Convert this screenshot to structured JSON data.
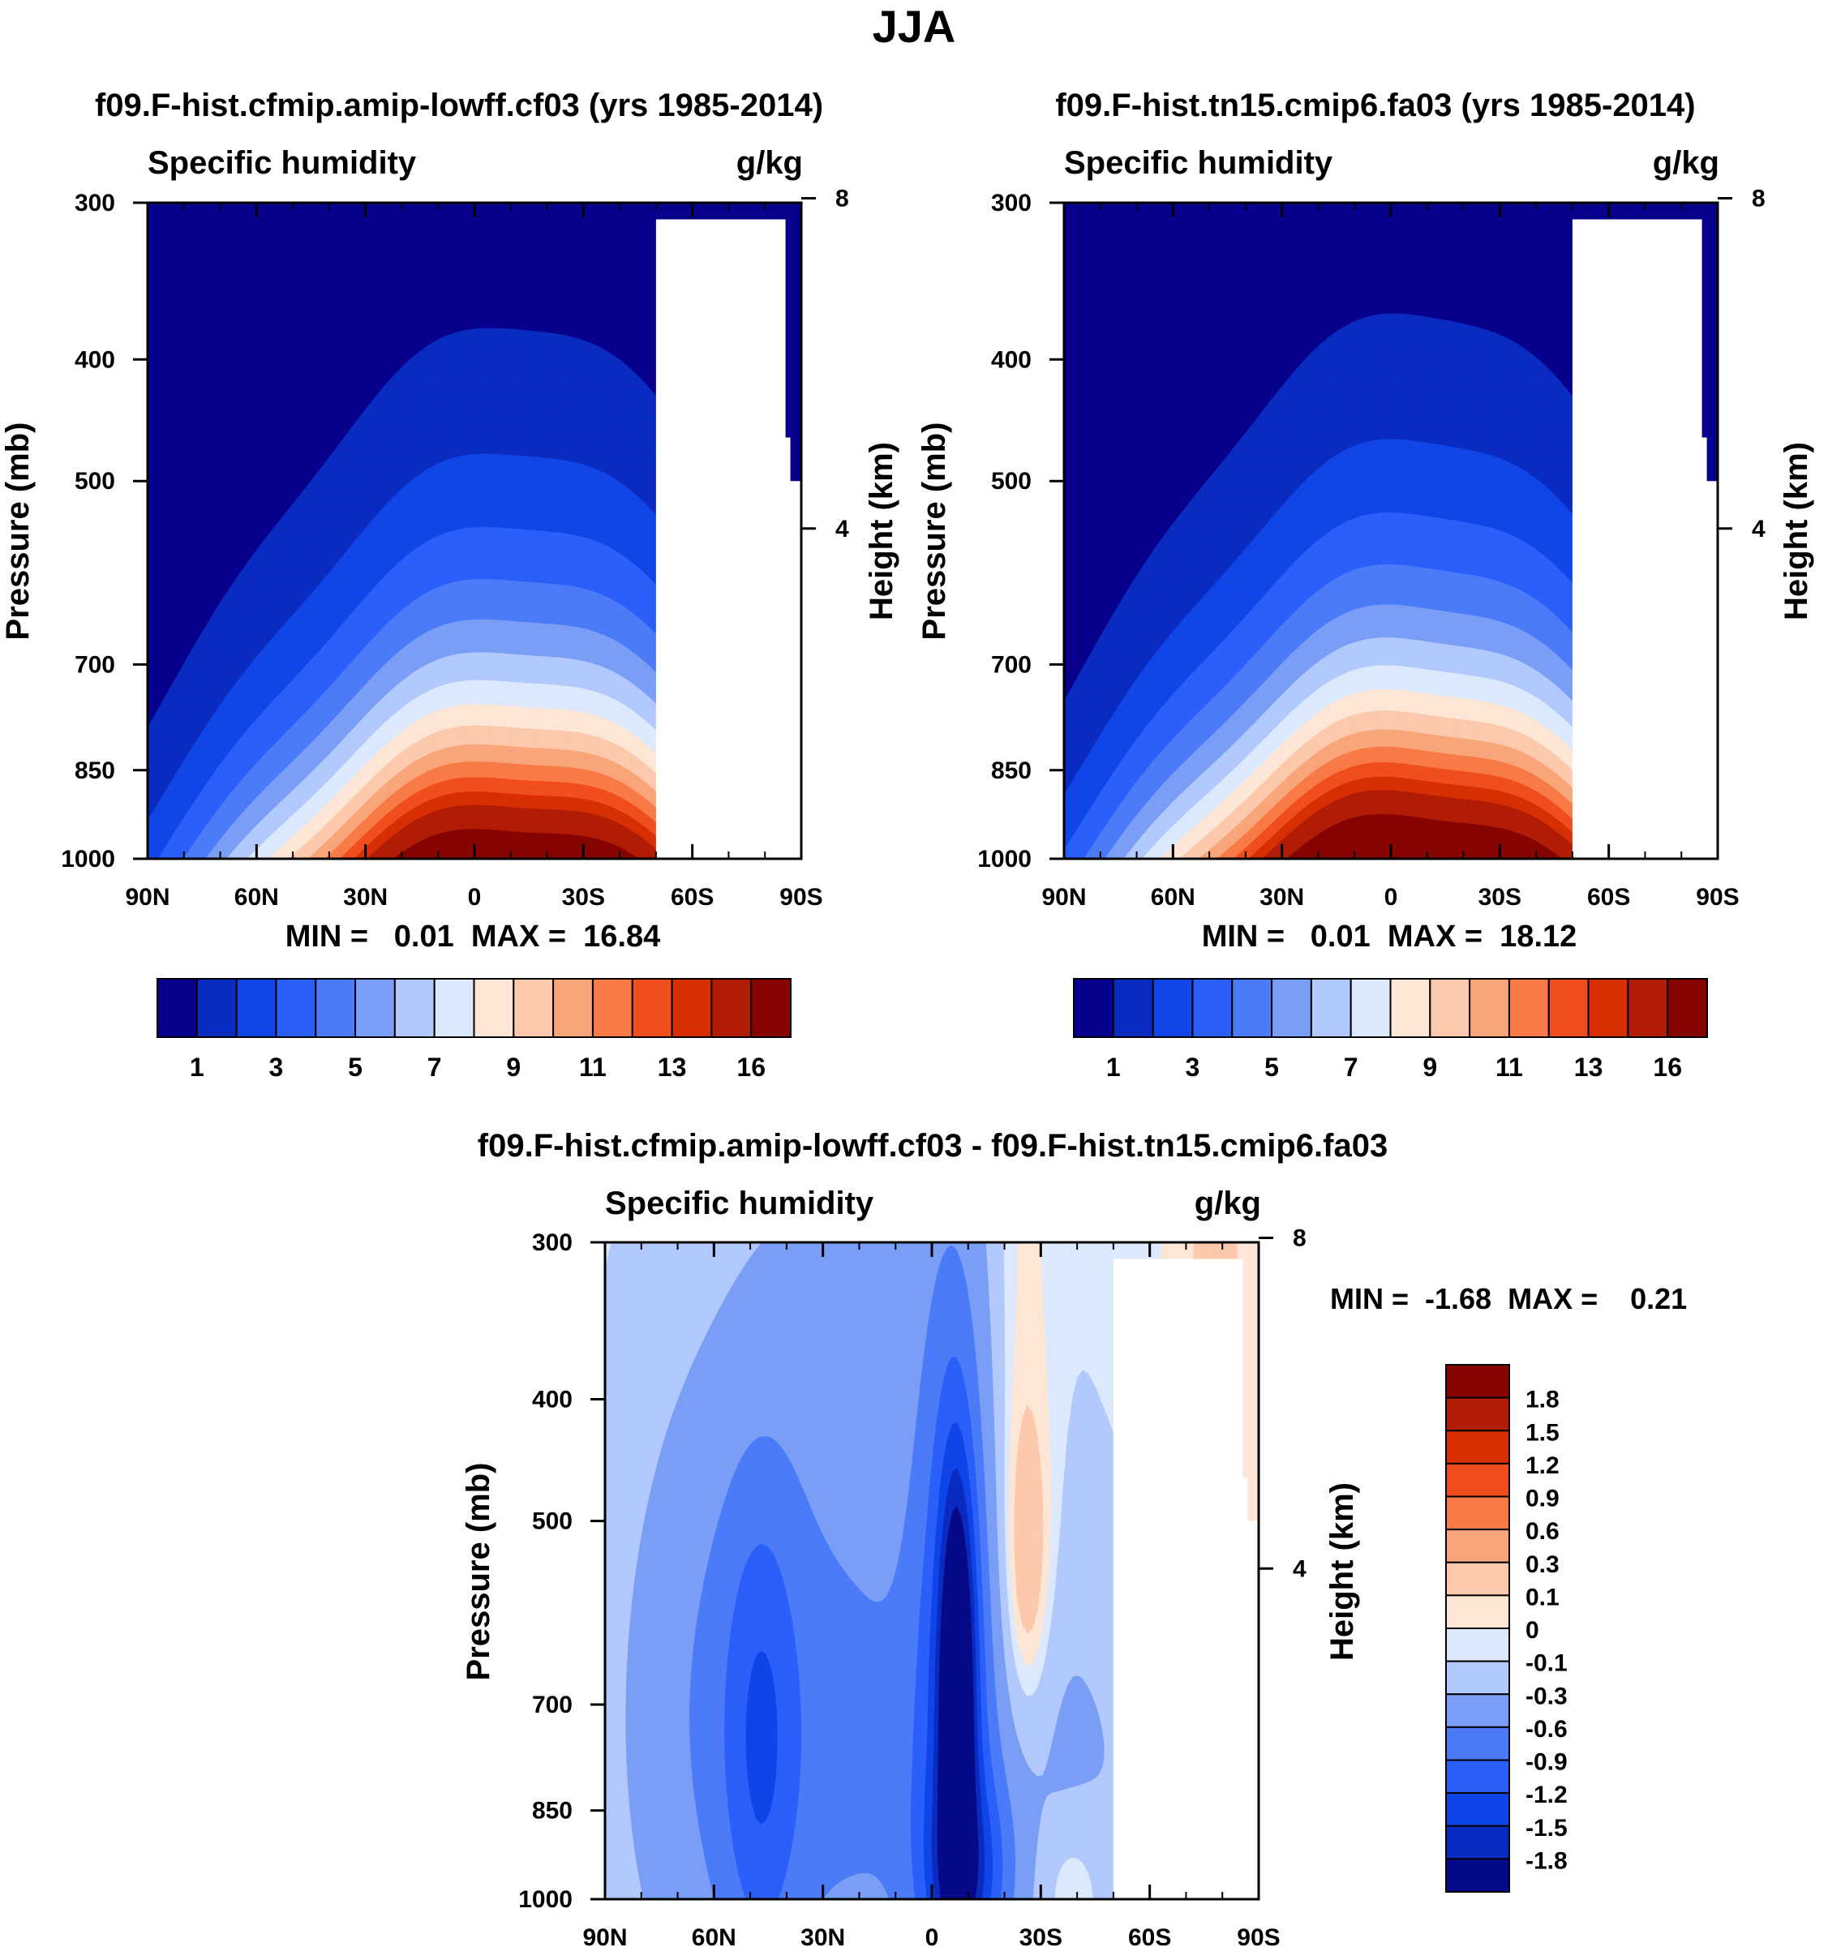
{
  "chart_data": {
    "suptitle": "JJA",
    "panels": [
      {
        "id": "case",
        "type": "heatmap",
        "title": "f09.F-hist.cfmip.amip-lowff.cf03 (yrs 1985-2014)",
        "left_string": "Specific humidity",
        "right_string": "g/kg",
        "ylabel": "Pressure (mb)",
        "ylabel_right": "Height (km)",
        "xticks": [
          "90N",
          "60N",
          "30N",
          "0",
          "30S",
          "60S",
          "90S"
        ],
        "yticks": [
          "300",
          "400",
          "500",
          "700",
          "850",
          "1000"
        ],
        "yticks_right": [
          "8",
          "4"
        ],
        "ylim": [
          1000,
          300
        ],
        "xlim": [
          90,
          -90
        ],
        "min_text": "MIN =   0.01  MAX =  16.84",
        "min": 0.01,
        "max": 16.84,
        "peak_lat": -11,
        "colorbar_labels": [
          "1",
          "3",
          "5",
          "7",
          "9",
          "11",
          "13",
          "16"
        ]
      },
      {
        "id": "control",
        "type": "heatmap",
        "title": "f09.F-hist.tn15.cmip6.fa03 (yrs 1985-2014)",
        "left_string": "Specific humidity",
        "right_string": "g/kg",
        "ylabel": "Pressure (mb)",
        "ylabel_right": "Height (km)",
        "xticks": [
          "90N",
          "60N",
          "30N",
          "0",
          "30S",
          "60S",
          "90S"
        ],
        "yticks": [
          "300",
          "400",
          "500",
          "700",
          "850",
          "1000"
        ],
        "yticks_right": [
          "8",
          "4"
        ],
        "ylim": [
          1000,
          300
        ],
        "xlim": [
          90,
          -90
        ],
        "min_text": "MIN =   0.01  MAX =  18.12",
        "min": 0.01,
        "max": 18.12,
        "peak_lat": -8,
        "colorbar_labels": [
          "1",
          "3",
          "5",
          "7",
          "9",
          "11",
          "13",
          "16"
        ]
      },
      {
        "id": "difference",
        "type": "heatmap",
        "title": "f09.F-hist.cfmip.amip-lowff.cf03 - f09.F-hist.tn15.cmip6.fa03",
        "left_string": "Specific humidity",
        "right_string": "g/kg",
        "ylabel": "Pressure (mb)",
        "ylabel_right": "Height (km)",
        "xticks": [
          "90N",
          "60N",
          "30N",
          "0",
          "30S",
          "60S",
          "90S"
        ],
        "yticks": [
          "300",
          "400",
          "500",
          "700",
          "850",
          "1000"
        ],
        "yticks_right": [
          "8",
          "4"
        ],
        "ylim": [
          1000,
          300
        ],
        "xlim": [
          90,
          -90
        ],
        "min_text": "MIN =  -1.68  MAX =    0.21",
        "min": -1.68,
        "max": 0.21,
        "colorbar_labels": [
          "1.8",
          "1.5",
          "1.2",
          "0.9",
          "0.6",
          "0.3",
          "0.1",
          "0",
          "-0.1",
          "-0.3",
          "-0.6",
          "-0.9",
          "-1.2",
          "-1.5",
          "-1.8"
        ]
      }
    ],
    "seq_levels": [
      1,
      2,
      3,
      4,
      5,
      6,
      7,
      8,
      9,
      10,
      11,
      12,
      13,
      14,
      16
    ],
    "seq_colors": [
      "#06008c",
      "#0a2bc0",
      "#1045e8",
      "#2b5ffa",
      "#4b7bf8",
      "#7a9ef5",
      "#b1c9fc",
      "#dce9fc",
      "#fde6d5",
      "#fcc9ad",
      "#f9a57a",
      "#f87a46",
      "#f04e1c",
      "#d72e04",
      "#b11c04",
      "#860400"
    ],
    "diff_levels": [
      -1.8,
      -1.5,
      -1.2,
      -0.9,
      -0.6,
      -0.3,
      -0.1,
      0,
      0.1,
      0.3,
      0.6,
      0.9,
      1.2,
      1.5,
      1.8
    ],
    "diff_colors": [
      "#060a88",
      "#0a2bc0",
      "#0f44e8",
      "#2b5ffa",
      "#4b7bf8",
      "#7a9ef5",
      "#b1c9fc",
      "#dce9fc",
      "#fde6d5",
      "#fcc9ad",
      "#f9a57a",
      "#f87a46",
      "#f04e1c",
      "#d72e04",
      "#b11c04",
      "#860400"
    ]
  }
}
